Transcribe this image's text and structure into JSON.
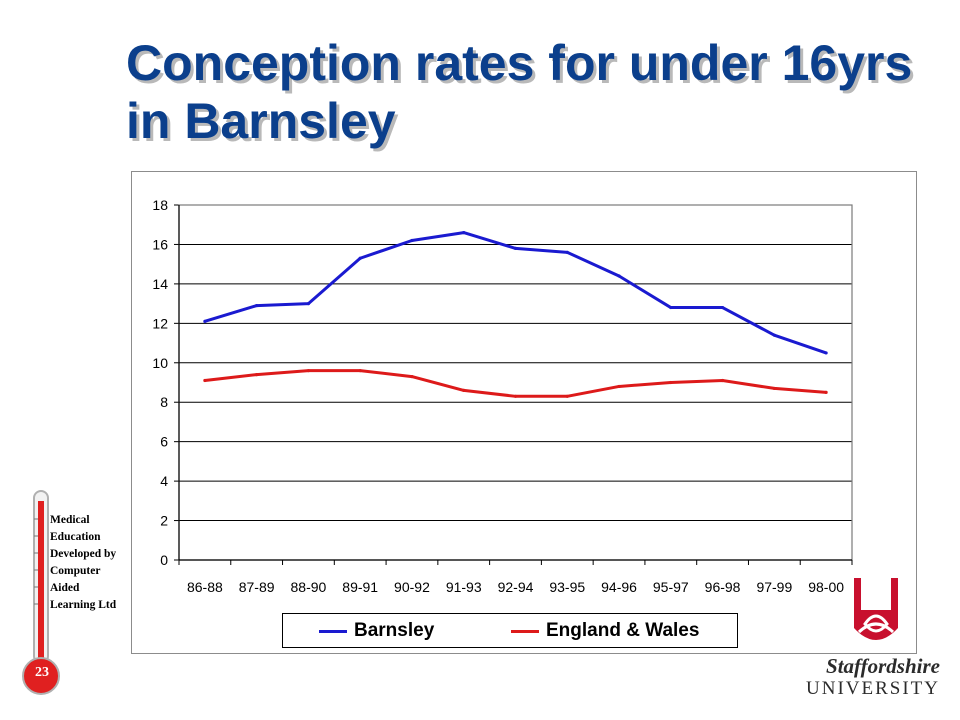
{
  "slide": {
    "title_line1": "Conception rates for under 16yrs",
    "title_line2": "in Barnsley"
  },
  "chart_data": {
    "type": "line",
    "title": "",
    "xlabel": "",
    "ylabel": "",
    "categories": [
      "86-88",
      "87-89",
      "88-90",
      "89-91",
      "90-92",
      "91-93",
      "92-94",
      "93-95",
      "94-96",
      "95-97",
      "96-98",
      "97-99",
      "98-00"
    ],
    "yticks": [
      0,
      2,
      4,
      6,
      8,
      10,
      12,
      14,
      16,
      18
    ],
    "ylim": [
      0,
      18
    ],
    "grid": "horizontal",
    "legend_position": "bottom",
    "series": [
      {
        "name": "Barnsley",
        "color": "#1a1ad0",
        "values": [
          12.1,
          12.9,
          13.0,
          15.3,
          16.2,
          16.6,
          15.8,
          15.6,
          14.4,
          12.8,
          12.8,
          11.4,
          10.5
        ]
      },
      {
        "name": "England & Wales",
        "color": "#dd1a1a",
        "values": [
          9.1,
          9.4,
          9.6,
          9.6,
          9.3,
          8.6,
          8.3,
          8.3,
          8.8,
          9.0,
          9.1,
          8.7,
          8.5
        ]
      }
    ]
  },
  "logos": {
    "thermometer_lines": [
      "Medical",
      "Education",
      "Developed by",
      "Computer",
      "Aided",
      "Learning Ltd"
    ],
    "thermometer_number": "23",
    "university_line1": "Staffordshire",
    "university_line2": "UNIVERSITY",
    "crest_color": "#c8102e",
    "thermometer_color": "#e02020"
  }
}
